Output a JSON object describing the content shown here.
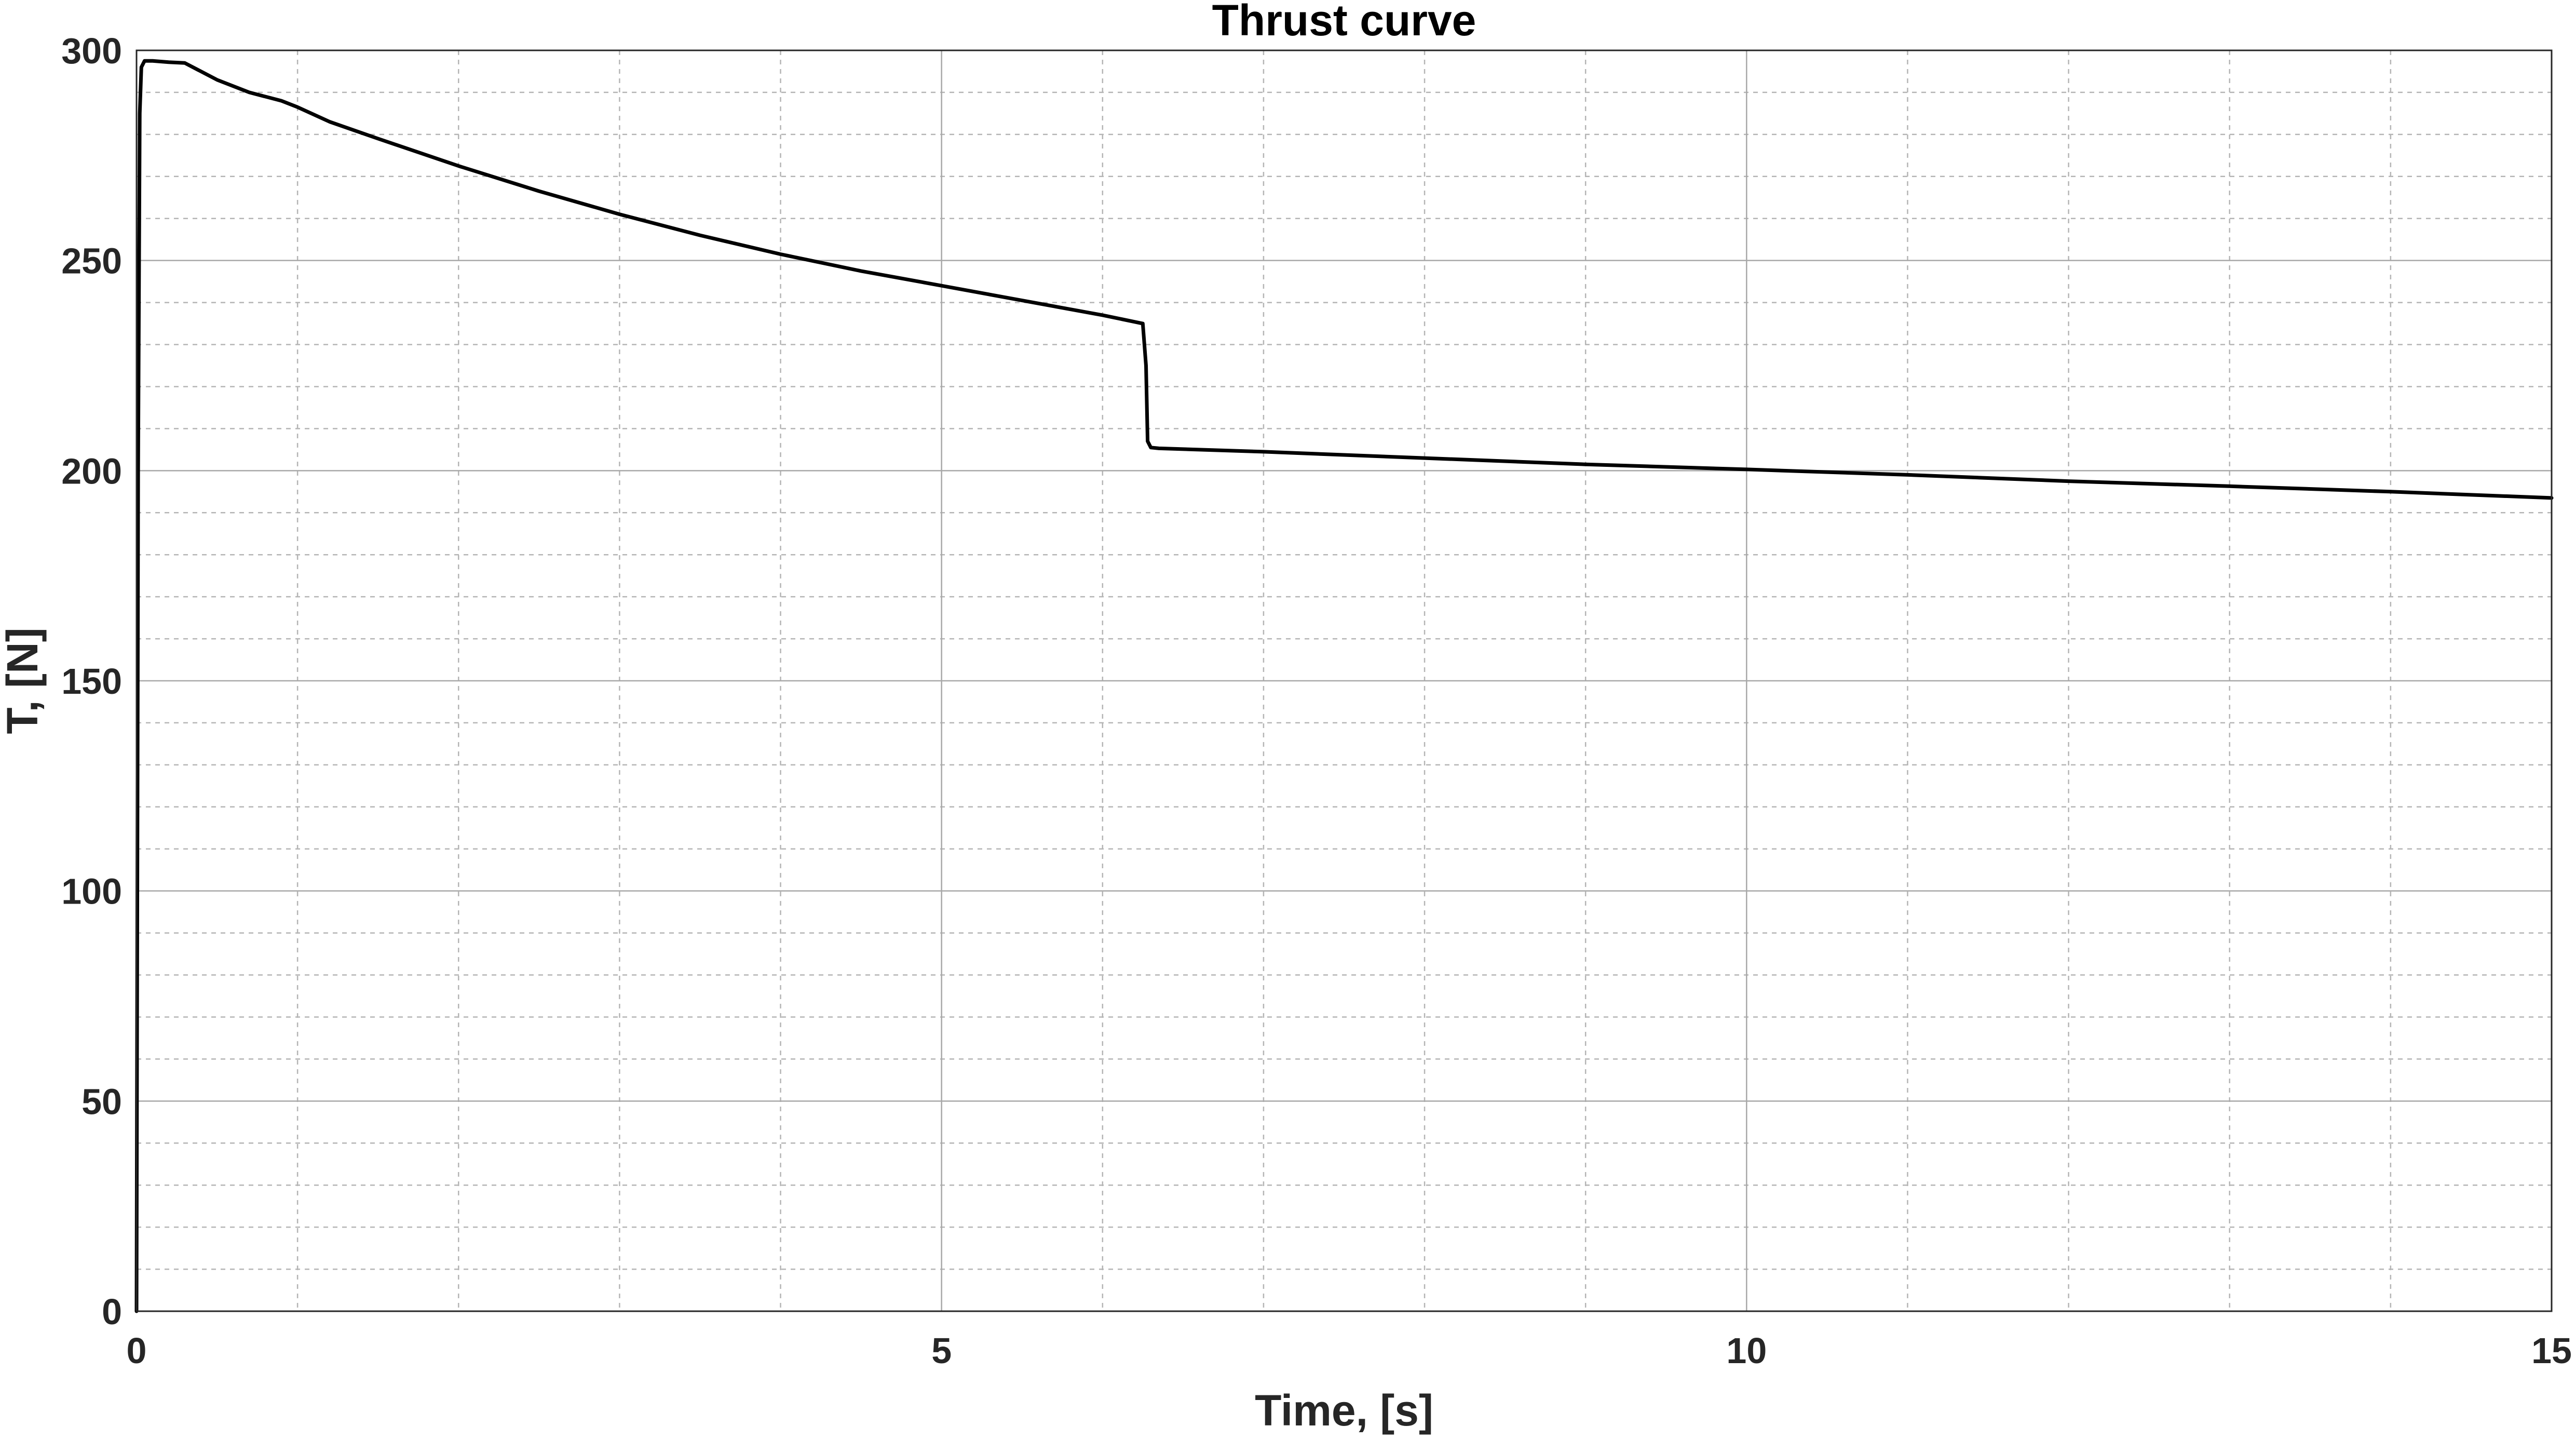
{
  "chart_data": {
    "type": "line",
    "title": "Thrust curve",
    "xlabel": "Time, [s]",
    "ylabel": "T, [N]",
    "xlim": [
      0,
      15
    ],
    "ylim": [
      0,
      300
    ],
    "xticks": [
      0,
      5,
      10,
      15
    ],
    "yticks": [
      0,
      50,
      100,
      150,
      200,
      250,
      300
    ],
    "x_minor_step": 1,
    "y_minor_step": 10,
    "grid": true,
    "minor_grid": true,
    "line_color": "#000000",
    "series": [
      {
        "x": [
          0,
          0.01,
          0.02,
          0.03,
          0.05,
          0.1,
          0.2,
          0.3,
          0.5,
          0.7,
          0.9,
          1.0,
          1.2,
          1.5,
          2.0,
          2.5,
          3.0,
          3.5,
          4.0,
          4.5,
          5.0,
          5.5,
          6.0,
          6.25,
          6.27,
          6.28,
          6.3,
          6.35,
          7.0,
          8.0,
          9.0,
          10.0,
          11.0,
          12.0,
          13.0,
          14.0,
          15.0
        ],
        "y": [
          0,
          200,
          285,
          296,
          297.5,
          297.5,
          297.2,
          297,
          293,
          290,
          288,
          286.5,
          283,
          279,
          272.5,
          266.5,
          261,
          256,
          251.5,
          247.5,
          244,
          240.5,
          237,
          235,
          225,
          207,
          205.5,
          205.3,
          204.5,
          203,
          201.5,
          200.3,
          199,
          197.5,
          196.3,
          195,
          193.5
        ]
      }
    ]
  }
}
